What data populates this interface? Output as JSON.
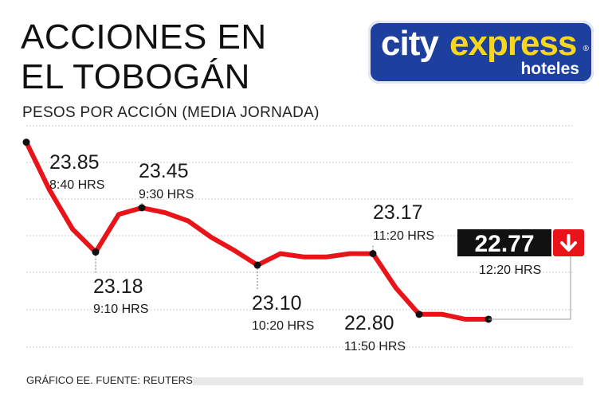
{
  "title_line1": "ACCIONES EN",
  "title_line2": "EL TOBOGÁN",
  "subtitle": "PESOS POR ACCIÓN  (MEDIA JORNADA)",
  "logo": {
    "word1": "city",
    "word2": "express",
    "reg": "®",
    "word3": "hoteles",
    "bg_color": "#1d3f9e",
    "accent_color": "#f7d61c"
  },
  "footer": "GRÁFICO EE. FUENTE: REUTERS.",
  "colors": {
    "line": "#e8141a",
    "marker": "#111111",
    "box": "#111111",
    "arrow_box": "#e8141a"
  },
  "chart_data": {
    "type": "line",
    "ylim": [
      22.6,
      23.95
    ],
    "grid": true,
    "series": [
      {
        "values": [
          23.85,
          23.56,
          23.32,
          23.18,
          23.41,
          23.45,
          23.42,
          23.37,
          23.27,
          23.19,
          23.1,
          23.17,
          23.15,
          23.15,
          23.17,
          23.17,
          22.96,
          22.8,
          22.8,
          22.77,
          22.77
        ]
      }
    ],
    "annotations": [
      {
        "index": 0,
        "value": "23.85",
        "time": "8:40 HRS"
      },
      {
        "index": 3,
        "value": "23.18",
        "time": "9:10 HRS"
      },
      {
        "index": 5,
        "value": "23.45",
        "time": "9:30 HRS"
      },
      {
        "index": 10,
        "value": "23.10",
        "time": "10:20 HRS"
      },
      {
        "index": 15,
        "value": "23.17",
        "time": "11:20 HRS"
      },
      {
        "index": 17,
        "value": "22.80",
        "time": "11:50 HRS"
      }
    ],
    "last": {
      "index": 20,
      "value": "22.77",
      "time": "12:20 HRS",
      "direction": "down"
    }
  }
}
